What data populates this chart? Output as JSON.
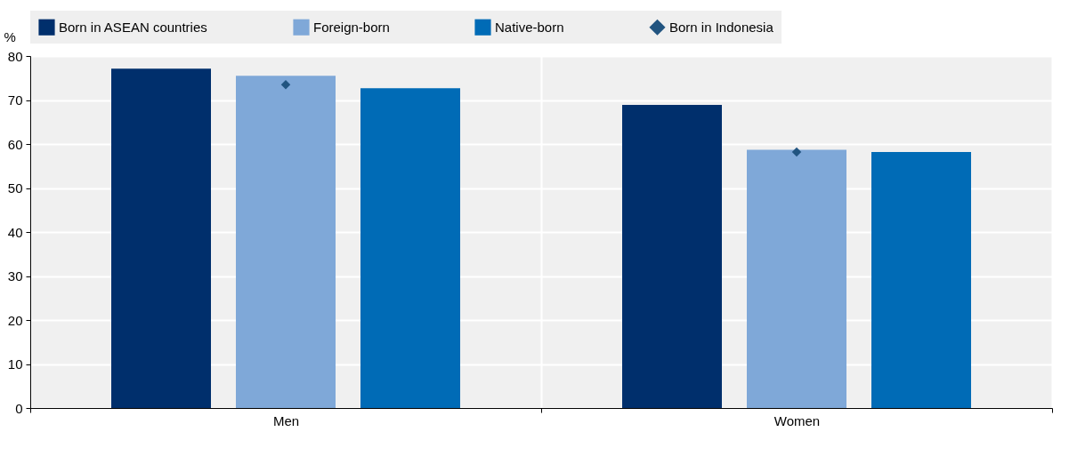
{
  "chart_data": {
    "type": "bar",
    "ylabel": "%",
    "categories": [
      "Men",
      "Women"
    ],
    "ylim": [
      0,
      80
    ],
    "yticks": [
      0,
      10,
      20,
      30,
      40,
      50,
      60,
      70,
      80
    ],
    "grid": "y",
    "legend": "top",
    "series": [
      {
        "name": "Born in ASEAN countries",
        "color": "#002f6c",
        "values": [
          77.1,
          68.9
        ]
      },
      {
        "name": "Foreign-born",
        "color": "#7fa8d8",
        "values": [
          75.5,
          58.7
        ]
      },
      {
        "name": "Native-born",
        "color": "#006bb6",
        "values": [
          72.7,
          58.2
        ]
      },
      {
        "name": "Born in Indonesia",
        "type": "scatter",
        "marker": "diamond",
        "color": "#215480",
        "x": [
          "Men",
          "Women"
        ],
        "values": [
          73.5,
          58.2
        ]
      }
    ]
  }
}
